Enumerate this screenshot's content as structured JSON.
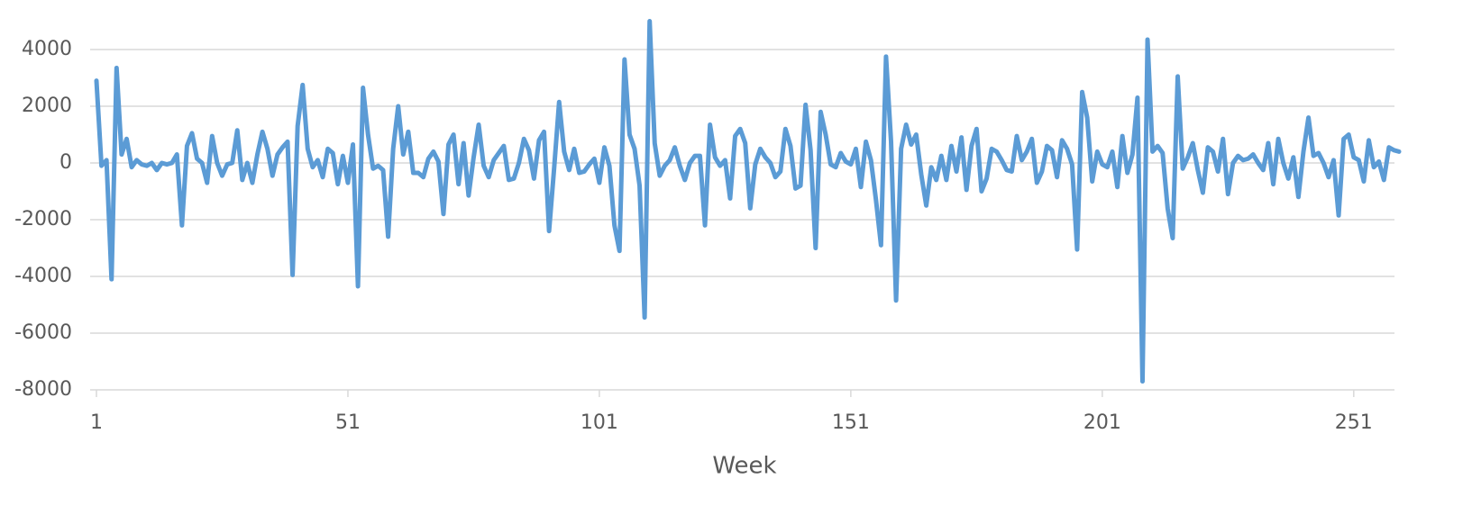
{
  "chart_data": {
    "type": "line",
    "x_label": "Week",
    "color": "#5b9bd5",
    "grid": true,
    "xlim": [
      1,
      260
    ],
    "xticks": [
      1,
      51,
      101,
      151,
      201,
      251
    ],
    "ylim": [
      -8000,
      5000
    ],
    "yticks": [
      -8000,
      -6000,
      -4000,
      -2000,
      0,
      2000,
      4000
    ],
    "x": [
      1,
      2,
      3,
      4,
      5,
      6,
      7,
      8,
      9,
      10,
      11,
      12,
      13,
      14,
      15,
      16,
      17,
      18,
      19,
      20,
      21,
      22,
      23,
      24,
      25,
      26,
      27,
      28,
      29,
      30,
      31,
      32,
      33,
      34,
      35,
      36,
      37,
      38,
      39,
      40,
      41,
      42,
      43,
      44,
      45,
      46,
      47,
      48,
      49,
      50,
      51,
      52,
      53,
      54,
      55,
      56,
      57,
      58,
      59,
      60,
      61,
      62,
      63,
      64,
      65,
      66,
      67,
      68,
      69,
      70,
      71,
      72,
      73,
      74,
      75,
      76,
      77,
      78,
      79,
      80,
      81,
      82,
      83,
      84,
      85,
      86,
      87,
      88,
      89,
      90,
      91,
      92,
      93,
      94,
      95,
      96,
      97,
      98,
      99,
      100,
      101,
      102,
      103,
      104,
      105,
      106,
      107,
      108,
      109,
      110,
      111,
      112,
      113,
      114,
      115,
      116,
      117,
      118,
      119,
      120,
      121,
      122,
      123,
      124,
      125,
      126,
      127,
      128,
      129,
      130,
      131,
      132,
      133,
      134,
      135,
      136,
      137,
      138,
      139,
      140,
      141,
      142,
      143,
      144,
      145,
      146,
      147,
      148,
      149,
      150,
      151,
      152,
      153,
      154,
      155,
      156,
      157,
      158,
      159,
      160,
      161,
      162,
      163,
      164,
      165,
      166,
      167,
      168,
      169,
      170,
      171,
      172,
      173,
      174,
      175,
      176,
      177,
      178,
      179,
      180,
      181,
      182,
      183,
      184,
      185,
      186,
      187,
      188,
      189,
      190,
      191,
      192,
      193,
      194,
      195,
      196,
      197,
      198,
      199,
      200,
      201,
      202,
      203,
      204,
      205,
      206,
      207,
      208,
      209,
      210,
      211,
      212,
      213,
      214,
      215,
      216,
      217,
      218,
      219,
      220,
      221,
      222,
      223,
      224,
      225,
      226,
      227,
      228,
      229,
      230,
      231,
      232,
      233,
      234,
      235,
      236,
      237,
      238,
      239,
      240,
      241,
      242,
      243,
      244,
      245,
      246,
      247,
      248,
      249,
      250,
      251,
      252,
      253,
      254,
      255,
      256,
      257,
      258,
      259,
      260
    ],
    "values": [
      2900,
      -100,
      100,
      -4100,
      3350,
      300,
      850,
      -150,
      100,
      -50,
      -100,
      0,
      -250,
      0,
      -50,
      0,
      300,
      -2200,
      600,
      1050,
      150,
      0,
      -700,
      950,
      0,
      -450,
      -50,
      0,
      1150,
      -600,
      0,
      -700,
      300,
      1100,
      500,
      -450,
      300,
      550,
      750,
      -3950,
      1300,
      2750,
      500,
      -150,
      100,
      -500,
      500,
      350,
      -750,
      250,
      -700,
      650,
      -4350,
      2650,
      1000,
      -200,
      -100,
      -250,
      -2600,
      500,
      2000,
      300,
      1100,
      -350,
      -350,
      -500,
      150,
      400,
      50,
      -1800,
      650,
      1000,
      -750,
      700,
      -1150,
      200,
      1350,
      -100,
      -500,
      100,
      350,
      600,
      -600,
      -550,
      0,
      850,
      450,
      -550,
      800,
      1100,
      -2400,
      -200,
      2150,
      400,
      -250,
      500,
      -350,
      -300,
      -50,
      150,
      -700,
      550,
      -100,
      -2200,
      -3100,
      3650,
      1000,
      500,
      -800,
      -5450,
      5000,
      700,
      -450,
      -100,
      100,
      550,
      -100,
      -600,
      0,
      250,
      250,
      -2200,
      1350,
      200,
      -100,
      100,
      -1250,
      950,
      1200,
      700,
      -1600,
      -50,
      500,
      200,
      0,
      -500,
      -300,
      1200,
      600,
      -900,
      -800,
      2050,
      450,
      -3000,
      1800,
      1000,
      -50,
      -150,
      350,
      50,
      -50,
      500,
      -850,
      750,
      100,
      -1300,
      -2900,
      3750,
      750,
      -4850,
      500,
      1350,
      650,
      1000,
      -400,
      -1500,
      -150,
      -600,
      250,
      -600,
      600,
      -300,
      900,
      -950,
      600,
      1200,
      -1000,
      -550,
      500,
      400,
      100,
      -250,
      -300,
      950,
      100,
      400,
      850,
      -700,
      -300,
      600,
      450,
      -500,
      800,
      500,
      -50,
      -3050,
      2500,
      1600,
      -650,
      400,
      -50,
      -150,
      400,
      -850,
      950,
      -350,
      300,
      2300,
      -7700,
      4350,
      400,
      600,
      350,
      -1600,
      -2650,
      3050,
      -200,
      200,
      700,
      -250,
      -1050,
      550,
      400,
      -300,
      850,
      -1100,
      0,
      250,
      100,
      150,
      300,
      0,
      -250,
      700,
      -750,
      850,
      0,
      -550,
      200,
      -1200,
      400,
      1600,
      250,
      350,
      0,
      -500,
      100,
      -1850,
      850,
      1000,
      200,
      100,
      -650,
      800,
      -150,
      50,
      -600,
      550,
      450,
      400
    ]
  }
}
